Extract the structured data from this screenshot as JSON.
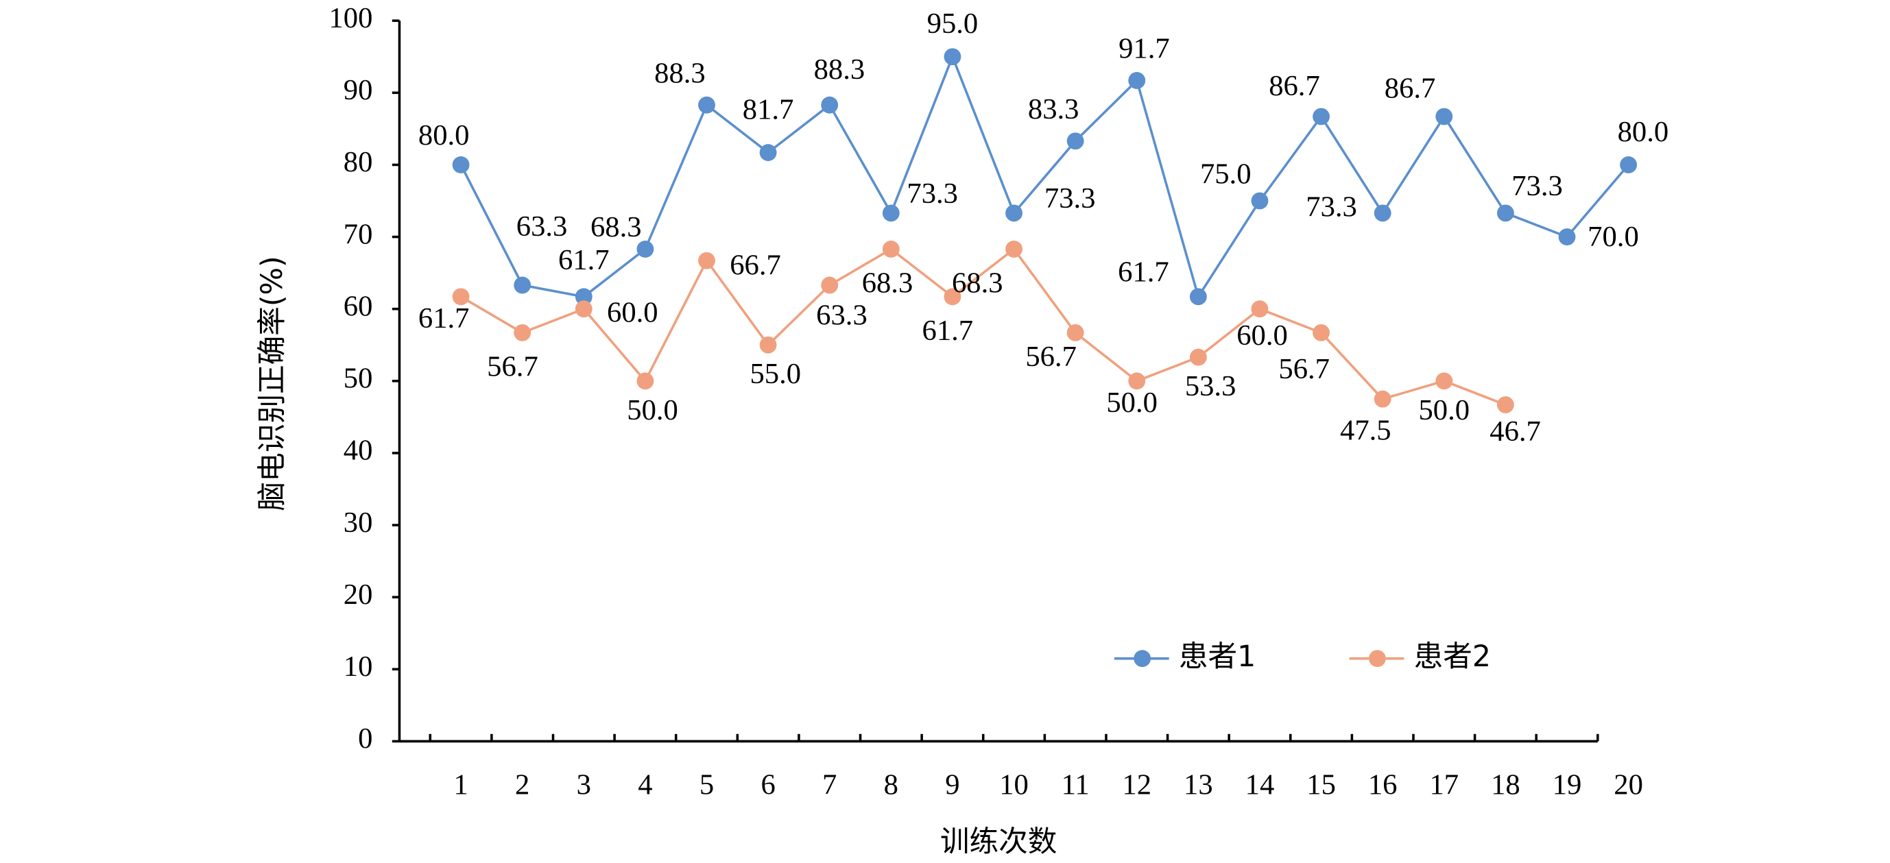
{
  "chart_data": {
    "type": "line",
    "x_label": "训练次数",
    "y_label": "脑电识别正确率(%)",
    "categories": [
      "1",
      "2",
      "3",
      "4",
      "5",
      "6",
      "7",
      "8",
      "9",
      "10",
      "11",
      "12",
      "13",
      "14",
      "15",
      "16",
      "17",
      "18",
      "19",
      "20"
    ],
    "series": [
      {
        "name": "患者1",
        "color": "#5b8fcd",
        "values": [
          80.0,
          63.3,
          61.7,
          68.3,
          88.3,
          81.7,
          88.3,
          73.3,
          95.0,
          73.3,
          83.3,
          91.7,
          61.7,
          75.0,
          86.7,
          73.3,
          86.7,
          73.3,
          70.0,
          80.0
        ],
        "value_labels": [
          "80.0",
          "63.3",
          "61.7",
          "68.3",
          "88.3",
          "81.7",
          "88.3",
          "73.3",
          "95.0",
          "73.3",
          "83.3",
          "91.7",
          "61.7",
          "75.0",
          "86.7",
          "73.3",
          "86.7",
          "73.3",
          "70.0",
          "80.0"
        ]
      },
      {
        "name": "患者2",
        "color": "#f0a07e",
        "values": [
          61.7,
          56.7,
          60.0,
          50.0,
          66.7,
          55.0,
          63.3,
          68.3,
          61.7,
          68.3,
          56.7,
          50.0,
          53.3,
          60.0,
          56.7,
          47.5,
          50.0,
          46.7,
          null,
          null
        ],
        "value_labels": [
          "61.7",
          "56.7",
          "60.0",
          "50.0",
          "66.7",
          "55.0",
          "63.3",
          "68.3",
          "61.7",
          "68.3",
          "56.7",
          "50.0",
          "53.3",
          "60.0",
          "56.7",
          "47.5",
          "50.0",
          "46.7",
          null,
          null
        ]
      }
    ],
    "ylim": [
      0,
      100
    ],
    "yticks": [
      0,
      10,
      20,
      30,
      40,
      50,
      60,
      70,
      80,
      90,
      100
    ],
    "legend": "lower right"
  }
}
